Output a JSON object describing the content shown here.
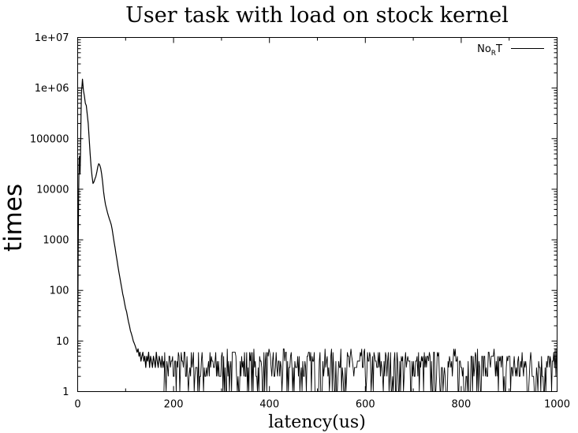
{
  "chart_data": {
    "type": "line",
    "title": "User task with load on stock kernel",
    "xlabel": "latency(us)",
    "ylabel": "times",
    "xlim": [
      0,
      1000
    ],
    "ylim": [
      1,
      10000000
    ],
    "y_scale": "log",
    "grid": false,
    "legend_position": "top-right",
    "x_ticks": [
      0,
      200,
      400,
      600,
      800,
      1000
    ],
    "x_tick_labels": [
      "0",
      "200",
      "400",
      "600",
      "800",
      "1000"
    ],
    "y_ticks": [
      1,
      10,
      100,
      1000,
      10000,
      100000,
      1000000,
      10000000
    ],
    "y_tick_labels": [
      "1",
      "10",
      "100",
      "1000",
      "10000",
      "100000",
      "1e+06",
      "1e+07"
    ],
    "legend": {
      "base": "No",
      "sub": "R",
      "tail": "T"
    },
    "series": [
      {
        "name": "No_RT",
        "color": "#000000",
        "x": [
          0,
          1,
          2,
          3,
          4,
          5,
          6,
          7,
          8,
          9,
          10,
          12,
          14,
          16,
          18,
          20,
          22,
          24,
          26,
          28,
          30,
          32,
          34,
          36,
          38,
          40,
          42,
          44,
          46,
          48,
          50,
          52,
          54,
          56,
          58,
          60,
          62,
          64,
          66,
          68,
          70,
          72,
          74,
          76,
          78,
          80,
          82,
          84,
          86,
          88,
          90,
          92,
          94,
          96,
          98,
          100,
          102,
          104,
          106,
          108,
          110,
          112,
          114,
          116,
          118,
          120,
          122,
          124,
          126,
          128,
          130,
          132,
          134,
          136,
          138,
          140,
          142,
          144,
          146,
          148,
          150,
          152,
          154,
          156,
          158,
          160,
          162,
          164,
          166,
          168,
          170,
          172,
          174,
          176,
          178,
          180
        ],
        "y": [
          6,
          500,
          8000,
          40000,
          45000,
          20000,
          55000,
          300000,
          900000,
          1100000,
          1500000,
          900000,
          700000,
          500000,
          450000,
          300000,
          200000,
          100000,
          50000,
          28000,
          18000,
          13000,
          14000,
          16000,
          18000,
          22000,
          28000,
          32000,
          30000,
          26000,
          20000,
          14000,
          9000,
          6500,
          5000,
          4200,
          3500,
          3000,
          2600,
          2300,
          2000,
          1600,
          1200,
          900,
          700,
          520,
          400,
          300,
          230,
          180,
          140,
          110,
          85,
          70,
          55,
          44,
          38,
          30,
          24,
          20,
          16,
          14,
          12,
          10,
          9,
          8,
          7,
          6,
          7,
          5,
          6,
          4,
          5,
          6,
          4,
          5,
          3,
          5,
          4,
          6,
          3,
          5,
          4,
          3,
          5,
          4,
          3,
          6,
          4,
          3,
          5,
          4,
          3,
          5,
          3,
          4
        ]
      }
    ]
  }
}
